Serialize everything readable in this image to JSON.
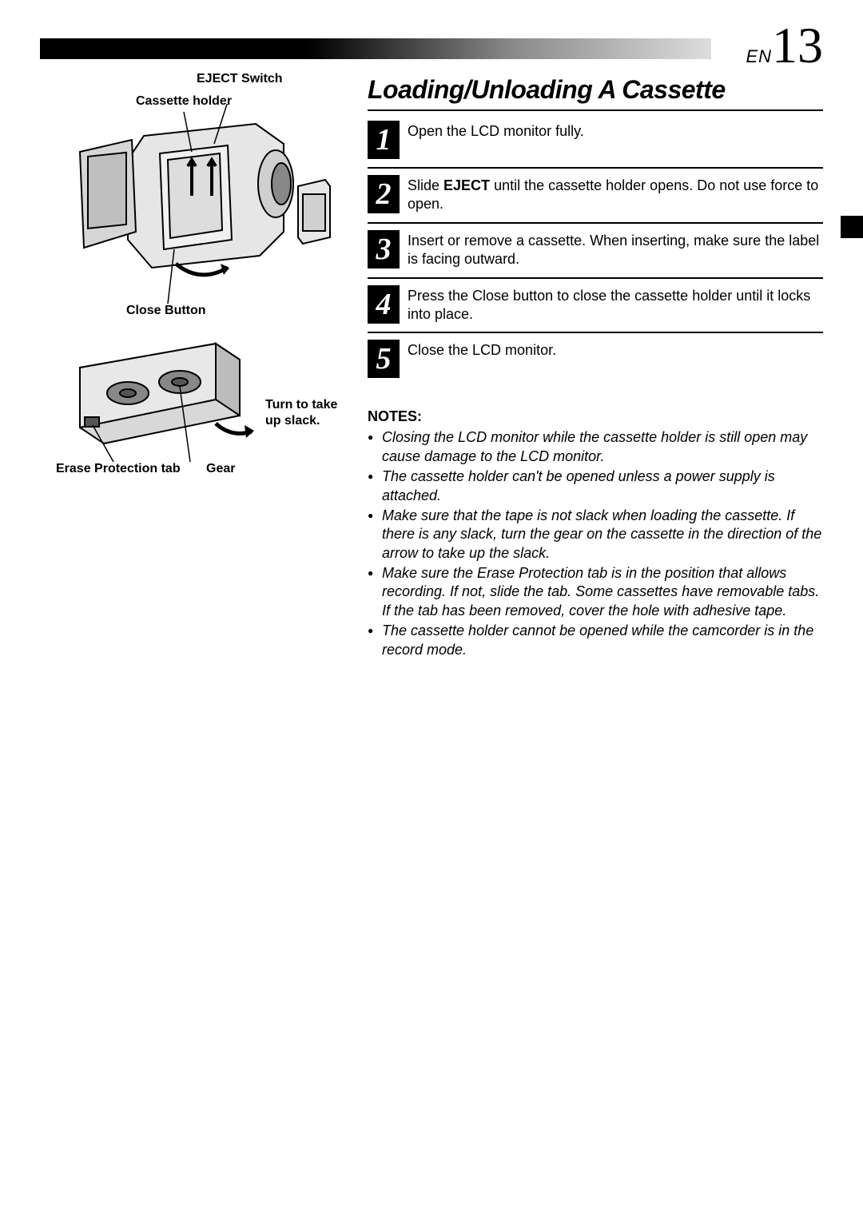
{
  "page_lang": "EN",
  "page_num": "13",
  "section_title": "Loading/Unloading A Cassette",
  "fig1_labels": {
    "eject_switch": "EJECT Switch",
    "cassette_holder": "Cassette holder",
    "close_button": "Close Button"
  },
  "fig2_labels": {
    "turn_slack_l1": "Turn to take",
    "turn_slack_l2": "up slack.",
    "erase_tab": "Erase Protection tab",
    "gear": "Gear"
  },
  "steps": [
    {
      "n": "1",
      "html": "Open the LCD monitor fully."
    },
    {
      "n": "2",
      "html": "Slide <b>EJECT</b> until the cassette holder opens. Do not use force to open."
    },
    {
      "n": "3",
      "html": "Insert or remove a cassette. When inserting, make sure the label is facing outward."
    },
    {
      "n": "4",
      "html": "Press the Close button to close the cassette holder until it locks into place."
    },
    {
      "n": "5",
      "html": "Close the LCD monitor."
    }
  ],
  "notes_title": "NOTES:",
  "notes": [
    "Closing the LCD monitor while the cassette holder is still open may cause damage to the LCD monitor.",
    "The cassette holder can't be opened unless a power supply is attached.",
    "Make sure that the tape is not slack when loading the cassette. If there is any slack, turn the gear on the cassette in the direction of the arrow to take up the slack.",
    "Make sure the Erase Protection tab is in the position that allows recording. If not, slide the tab. Some cassettes have removable tabs. If the tab has been removed, cover the hole with adhesive tape.",
    "The cassette holder cannot be opened while the camcorder is in the record mode."
  ],
  "colors": {
    "header_black": "#000000",
    "header_grey": "#888888",
    "text": "#000000"
  }
}
